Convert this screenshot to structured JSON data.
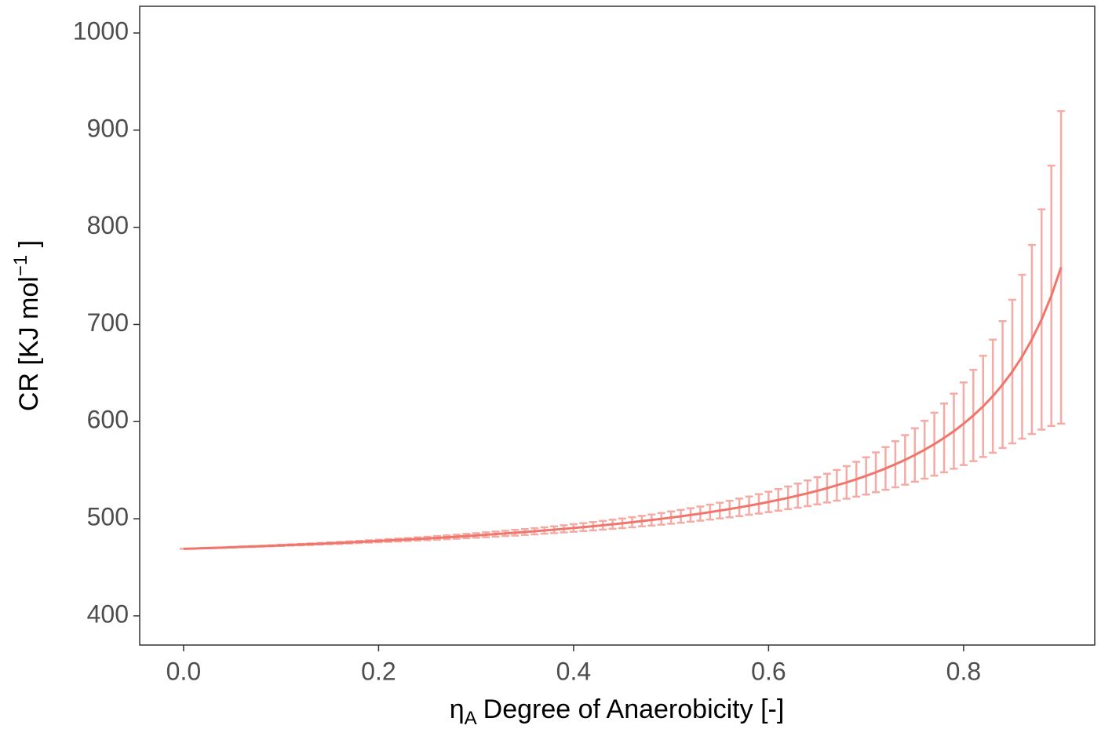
{
  "chart_data": {
    "type": "line",
    "x_label": {
      "symbol": "η",
      "subscript": "A",
      "text": "Degree of Anaerobicity [-]"
    },
    "y_label": {
      "text": "CR [KJ mol",
      "superscript": "−1",
      "end": " ]"
    },
    "color": "#f0766c",
    "error_color": "#f5aaa4",
    "xlim": [
      -0.045,
      0.9345
    ],
    "ylim": [
      370,
      1027.5
    ],
    "xticks": [
      {
        "value": 0,
        "label": "0.0"
      },
      {
        "value": 0.2,
        "label": "0.2"
      },
      {
        "value": 0.4,
        "label": "0.4"
      },
      {
        "value": 0.6,
        "label": "0.6"
      },
      {
        "value": 0.8,
        "label": "0.8"
      }
    ],
    "yticks": [
      400,
      500,
      600,
      700,
      800,
      900,
      1000
    ],
    "x": [
      0,
      0.01,
      0.02,
      0.03,
      0.04,
      0.05,
      0.06,
      0.07,
      0.08,
      0.09,
      0.1,
      0.11,
      0.12,
      0.13,
      0.14,
      0.15,
      0.16,
      0.17,
      0.18,
      0.19,
      0.2,
      0.21,
      0.22,
      0.23,
      0.24,
      0.25,
      0.26,
      0.27,
      0.28,
      0.29,
      0.3,
      0.31,
      0.32,
      0.33,
      0.34,
      0.35,
      0.36,
      0.37,
      0.38,
      0.39,
      0.4,
      0.41,
      0.42,
      0.43,
      0.44,
      0.45,
      0.46,
      0.47,
      0.48,
      0.49,
      0.5,
      0.51,
      0.52,
      0.53,
      0.54,
      0.55,
      0.56,
      0.57,
      0.58,
      0.59,
      0.6,
      0.61,
      0.62,
      0.63,
      0.64,
      0.65,
      0.66,
      0.67,
      0.68,
      0.69,
      0.7,
      0.71,
      0.72,
      0.73,
      0.74,
      0.75,
      0.76,
      0.77,
      0.78,
      0.79,
      0.8,
      0.81,
      0.82,
      0.83,
      0.84,
      0.85,
      0.86,
      0.87,
      0.88,
      0.89,
      0.9
    ],
    "values": [
      469,
      469.3,
      469.7,
      470,
      470.3,
      470.7,
      471.1,
      471.4,
      471.8,
      472.2,
      472.6,
      473,
      473.4,
      473.8,
      474.2,
      474.7,
      475.1,
      475.6,
      476.1,
      476.6,
      477.1,
      477.6,
      478.1,
      478.6,
      479.2,
      479.7,
      480.3,
      480.9,
      481.5,
      482.2,
      482.8,
      483.5,
      484.2,
      484.9,
      485.6,
      486.3,
      487.1,
      487.9,
      488.7,
      489.6,
      490.5,
      491.4,
      492.3,
      493.3,
      494.3,
      495.3,
      496.4,
      497.6,
      498.7,
      499.9,
      501.2,
      502.5,
      503.9,
      505.3,
      506.8,
      508.4,
      510,
      511.7,
      513.5,
      515.3,
      517.3,
      519.4,
      521.5,
      523.8,
      526.2,
      528.8,
      531.5,
      534.4,
      537.4,
      540.7,
      544.1,
      547.8,
      551.8,
      556.1,
      560.6,
      565.6,
      571,
      576.8,
      583.2,
      590.1,
      597.8,
      606.3,
      615.7,
      626.2,
      638.1,
      651.5,
      666.8,
      684.5,
      705.1,
      729.5,
      758.8
    ],
    "errors": [
      0,
      0.1,
      0.1,
      0.2,
      0.2,
      0.3,
      0.3,
      0.4,
      0.4,
      0.5,
      0.6,
      0.6,
      0.7,
      0.8,
      0.8,
      0.9,
      1,
      1.1,
      1.1,
      1.2,
      1.3,
      1.4,
      1.5,
      1.6,
      1.7,
      1.8,
      1.9,
      2,
      2.1,
      2.2,
      2.3,
      2.5,
      2.6,
      2.7,
      2.9,
      3,
      3.2,
      3.3,
      3.5,
      3.7,
      3.9,
      4.1,
      4.3,
      4.5,
      4.7,
      4.9,
      5.2,
      5.4,
      5.7,
      6,
      6.3,
      6.6,
      6.9,
      7.3,
      7.7,
      8.1,
      8.5,
      9,
      9.4,
      10,
      10.5,
      11.1,
      11.7,
      12.4,
      13.2,
      14,
      14.8,
      15.8,
      16.8,
      17.9,
      19.2,
      20.5,
      22,
      23.7,
      25.5,
      27.5,
      29.8,
      32.4,
      35.4,
      38.7,
      42.5,
      47,
      52.1,
      58.2,
      65.3,
      73.9,
      84.4,
      97.3,
      113.4,
      134,
      160.9
    ]
  }
}
